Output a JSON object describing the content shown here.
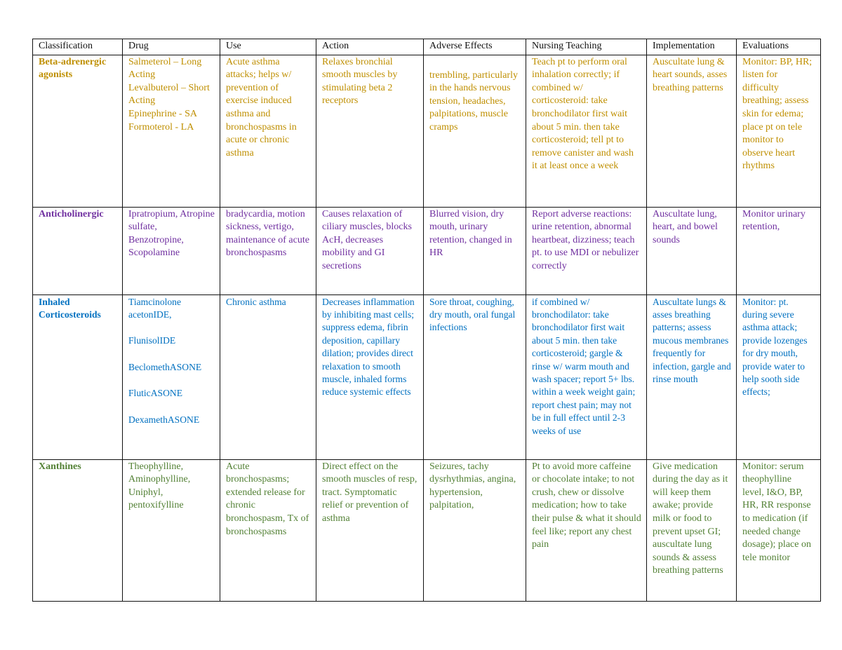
{
  "table": {
    "header": [
      "Classification",
      "Drug",
      "Use",
      "Action",
      "Adverse Effects",
      "Nursing Teaching",
      "Implementation",
      "Evaluations"
    ],
    "rows": [
      [
        [
          "Beta-adrenergic agonists"
        ],
        [
          "Salmeterol – Long Acting",
          "Levalbuterol – Short Acting",
          "Epinephrine - SA",
          "Formoterol - LA"
        ],
        [
          "Acute asthma attacks; helps w/ prevention of exercise induced asthma and bronchospasms in acute or chronic asthma"
        ],
        [
          "Relaxes bronchial smooth muscles by stimulating beta 2 receptors"
        ],
        [
          "trembling, particularly in the hands nervous tension, headaches, palpitations, muscle cramps"
        ],
        [
          "Teach pt to perform oral inhalation correctly; if combined w/ corticosteroid: take bronchodilator first wait about 5 min. then take corticosteroid; tell pt to remove canister and wash it at least once a week"
        ],
        [
          "Auscultate lung & heart sounds, asses breathing patterns"
        ],
        [
          "Monitor: BP, HR; listen for difficulty breathing; assess skin for edema; place pt on tele monitor to observe heart rhythms"
        ]
      ],
      [
        [
          "Anticholinergic"
        ],
        [
          "Ipratropium, Atropine sulfate, Benzotropine, Scopolamine"
        ],
        [
          "bradycardia, motion sickness, vertigo, maintenance of acute bronchospasms"
        ],
        [
          "Causes relaxation of ciliary muscles, blocks AcH, decreases mobility and GI secretions"
        ],
        [
          "Blurred vision, dry mouth, urinary retention, changed in HR"
        ],
        [
          "Report adverse reactions: urine retention, abnormal heartbeat, dizziness; teach pt. to use MDI or nebulizer correctly"
        ],
        [
          "Auscultate lung, heart, and bowel sounds"
        ],
        [
          "Monitor urinary retention,"
        ]
      ],
      [
        [
          "Inhaled Corticosteroids"
        ],
        [
          "Tiamcinolone acetonIDE,",
          "FlunisolIDE",
          "BeclomethASONE",
          "FluticASONE",
          "DexamethASONE"
        ],
        [
          "Chronic asthma"
        ],
        [
          "Decreases inflammation by inhibiting mast cells; suppress edema, fibrin deposition, capillary dilation; provides direct relaxation to smooth muscle, inhaled forms reduce systemic effects"
        ],
        [
          "Sore throat, coughing, dry mouth, oral fungal infections"
        ],
        [
          "if combined w/ bronchodilator: take bronchodilator first wait about 5 min. then take corticosteroid; gargle & rinse w/ warm mouth and wash spacer; report 5+ lbs. within a week weight gain; report chest pain; may not be in full effect until 2-3 weeks of use"
        ],
        [
          "Auscultate lungs & asses breathing patterns; assess mucous membranes frequently for infection, gargle and rinse mouth"
        ],
        [
          "Monitor: pt. during severe asthma attack; provide lozenges for dry mouth, provide water to help sooth side effects;"
        ]
      ],
      [
        [
          "Xanthines"
        ],
        [
          "Theophylline, Aminophylline, Uniphyl, pentoxifylline"
        ],
        [
          "Acute bronchospasms; extended release for chronic bronchospasm, Tx of bronchospasms"
        ],
        [
          "Direct effect on the smooth muscles of resp, tract. Symptomatic relief or prevention of asthma"
        ],
        [
          "Seizures, tachy dysrhythmias, angina, hypertension, palpitation,"
        ],
        [
          "Pt to avoid more caffeine or chocolate intake; to not crush, chew or dissolve medication; how to take their pulse & what it should feel like; report any chest pain"
        ],
        [
          "Give medication during the day as it will keep them awake; provide milk or food to prevent upset GI; auscultate lung sounds & assess breathing patterns"
        ],
        [
          "Monitor: serum theophylline level, I&O, BP, HR, RR response to medication (if needed change dosage); place on tele monitor"
        ]
      ]
    ]
  }
}
